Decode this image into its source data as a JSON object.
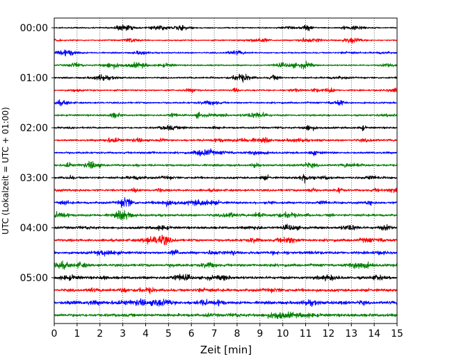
{
  "chart_data": {
    "type": "line",
    "subtype": "helicorder",
    "xlabel": "Zeit  [min]",
    "ylabel": "UTC (Lokalzeit = UTC + 01:00)",
    "xlim": [
      0,
      15
    ],
    "x_ticks": [
      "0",
      "1",
      "2",
      "3",
      "4",
      "5",
      "6",
      "7",
      "8",
      "9",
      "10",
      "11",
      "12",
      "13",
      "14",
      "15"
    ],
    "y_tick_labels": [
      "00:00",
      "01:00",
      "02:00",
      "03:00",
      "04:00",
      "05:00"
    ],
    "trace_interval_minutes": 15,
    "trace_count": 24,
    "trace_colors": [
      "#000000",
      "#ff0000",
      "#0000ff",
      "#008000"
    ],
    "x_grid": "dotted vertical lines at each minute",
    "legend": "none"
  }
}
